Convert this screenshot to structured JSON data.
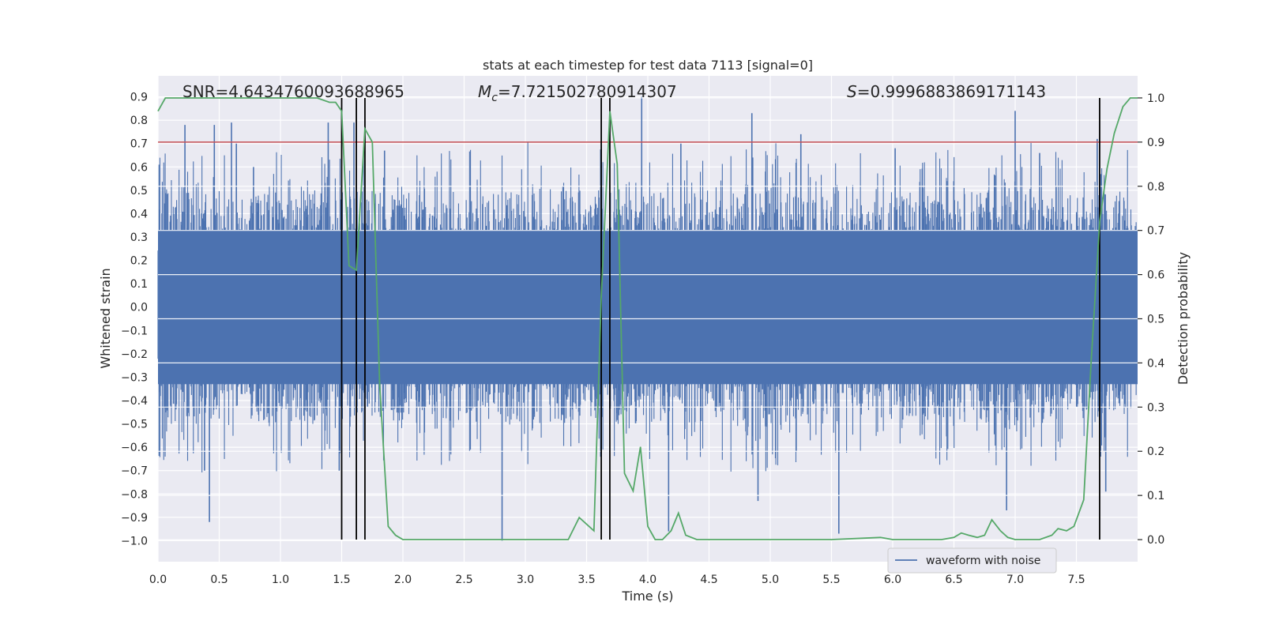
{
  "chart_data": {
    "type": "line",
    "title": "stats at each timestep for test data 7113 [signal=0]",
    "xlabel": "Time (s)",
    "ylabel": "Whitened strain",
    "ylabel_right": "Detection probability",
    "xlim": [
      0.0,
      8.0
    ],
    "ylim": [
      -1.09,
      0.99
    ],
    "ylim_right": [
      -0.05,
      1.05
    ],
    "x_ticks": [
      0.0,
      0.5,
      1.0,
      1.5,
      2.0,
      2.5,
      3.0,
      3.5,
      4.0,
      4.5,
      5.0,
      5.5,
      6.0,
      6.5,
      7.0,
      7.5
    ],
    "x_tick_labels": [
      "0.0",
      "0.5",
      "1.0",
      "1.5",
      "2.0",
      "2.5",
      "3.0",
      "3.5",
      "4.0",
      "4.5",
      "5.0",
      "5.5",
      "6.0",
      "6.5",
      "7.0",
      "7.5"
    ],
    "y_ticks": [
      0.9,
      0.8,
      0.7,
      0.6,
      0.5,
      0.4,
      0.3,
      0.2,
      0.1,
      0.0,
      -0.1,
      -0.2,
      -0.3,
      -0.4,
      -0.5,
      -0.6,
      -0.7,
      -0.8,
      -0.9,
      -1.0
    ],
    "y_tick_labels": [
      "0.9",
      "0.8",
      "0.7",
      "0.6",
      "0.5",
      "0.4",
      "0.3",
      "0.2",
      "0.1",
      "0.0",
      "−0.1",
      "−0.2",
      "−0.3",
      "−0.4",
      "−0.5",
      "−0.6",
      "−0.7",
      "−0.8",
      "−0.9",
      "−1.0"
    ],
    "y_ticks_right": [
      1.0,
      0.9,
      0.8,
      0.7,
      0.6,
      0.5,
      0.4,
      0.3,
      0.2,
      0.1,
      0.0
    ],
    "y_tick_labels_right": [
      "1.0",
      "0.9",
      "0.8",
      "0.7",
      "0.6",
      "0.5",
      "0.4",
      "0.3",
      "0.2",
      "0.1",
      "0.0"
    ],
    "annotations": {
      "snr": "SNR=4.6434760093688965",
      "mc_symbol": "M",
      "mc_sub": "c",
      "mc_value": "=7.721502780914307",
      "s_symbol": "S",
      "s_value": "=0.9996883869171143"
    },
    "legend": {
      "label": "waveform with noise",
      "placement": "lower-center-right"
    },
    "threshold_line": {
      "y_right": 0.9,
      "color": "#c44e52"
    },
    "vertical_lines": [
      1.5,
      1.62,
      1.69,
      3.62,
      3.69,
      7.69
    ],
    "waveform": {
      "name": "waveform with noise",
      "color": "#4c72b0",
      "samples": 2048,
      "core_amplitude": 0.33,
      "typical_peak": 0.5,
      "spikes": [
        {
          "x": 0.42,
          "y": -0.92
        },
        {
          "x": 0.46,
          "y": 0.78
        },
        {
          "x": 0.6,
          "y": 0.79
        },
        {
          "x": 0.64,
          "y": 0.7
        },
        {
          "x": 0.78,
          "y": 0.6
        },
        {
          "x": 1.39,
          "y": 0.79
        },
        {
          "x": 1.6,
          "y": 0.79
        },
        {
          "x": 1.85,
          "y": 0.67
        },
        {
          "x": 2.81,
          "y": -1.0
        },
        {
          "x": 3.95,
          "y": 0.9
        },
        {
          "x": 4.17,
          "y": -0.96
        },
        {
          "x": 4.85,
          "y": 0.83
        },
        {
          "x": 4.9,
          "y": -0.83
        },
        {
          "x": 5.25,
          "y": 0.74
        },
        {
          "x": 5.56,
          "y": -0.97
        },
        {
          "x": 6.93,
          "y": -0.87
        },
        {
          "x": 7.0,
          "y": 0.84
        },
        {
          "x": 7.2,
          "y": 0.66
        },
        {
          "x": 7.67,
          "y": 0.72
        },
        {
          "x": 7.74,
          "y": -0.79
        },
        {
          "x": 0.22,
          "y": 0.78
        },
        {
          "x": 0.38,
          "y": -0.7
        },
        {
          "x": 1.48,
          "y": -0.7
        },
        {
          "x": 4.27,
          "y": 0.7
        },
        {
          "x": 6.02,
          "y": 0.68
        }
      ]
    },
    "series": [
      {
        "name": "detection probability",
        "color": "#55a868",
        "axis": "right",
        "x": [
          0.0,
          0.06,
          0.12,
          0.2,
          0.3,
          0.5,
          0.7,
          0.9,
          1.0,
          1.1,
          1.2,
          1.3,
          1.4,
          1.45,
          1.5,
          1.56,
          1.62,
          1.69,
          1.75,
          1.81,
          1.88,
          1.94,
          2.0,
          2.06,
          2.12,
          2.2,
          2.4,
          2.6,
          2.8,
          3.0,
          3.2,
          3.35,
          3.44,
          3.56,
          3.62,
          3.69,
          3.75,
          3.81,
          3.88,
          3.94,
          4.0,
          4.06,
          4.12,
          4.19,
          4.25,
          4.31,
          4.4,
          4.5,
          4.6,
          5.0,
          5.5,
          5.9,
          6.0,
          6.2,
          6.4,
          6.5,
          6.56,
          6.62,
          6.69,
          6.75,
          6.81,
          6.88,
          6.94,
          7.0,
          7.1,
          7.2,
          7.3,
          7.35,
          7.42,
          7.48,
          7.56,
          7.62,
          7.69,
          7.75,
          7.81,
          7.88,
          7.94,
          8.0
        ],
        "y": [
          0.97,
          1.0,
          1.0,
          1.0,
          1.0,
          1.0,
          1.0,
          1.0,
          1.0,
          1.0,
          1.0,
          1.0,
          0.99,
          0.99,
          0.97,
          0.62,
          0.61,
          0.93,
          0.9,
          0.35,
          0.03,
          0.01,
          0.0,
          0.0,
          0.0,
          0.0,
          0.0,
          0.0,
          0.0,
          0.0,
          0.0,
          0.0,
          0.05,
          0.02,
          0.55,
          0.97,
          0.85,
          0.15,
          0.11,
          0.21,
          0.03,
          0.0,
          0.0,
          0.02,
          0.06,
          0.01,
          0.0,
          0.0,
          0.0,
          0.0,
          0.0,
          0.005,
          0.0,
          0.0,
          0.0,
          0.005,
          0.015,
          0.01,
          0.005,
          0.01,
          0.045,
          0.02,
          0.005,
          0.0,
          0.0,
          0.0,
          0.01,
          0.025,
          0.02,
          0.03,
          0.09,
          0.4,
          0.72,
          0.84,
          0.92,
          0.98,
          1.0,
          1.0
        ]
      }
    ]
  }
}
